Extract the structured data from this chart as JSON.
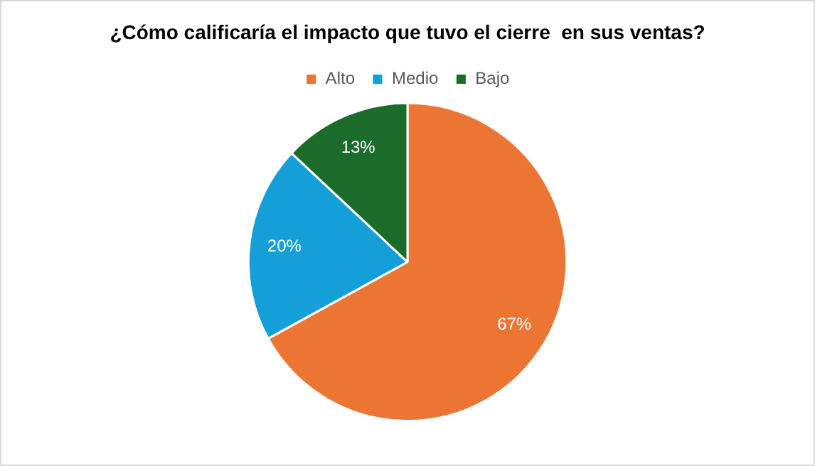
{
  "chart_data": {
    "type": "pie",
    "title": "¿Cómo calificaría el impacto que tuvo el cierre  en sus ventas?",
    "categories": [
      "Alto",
      "Medio",
      "Bajo"
    ],
    "values": [
      67,
      20,
      13
    ],
    "colors": [
      "#ed7534",
      "#149fd8",
      "#1b6b2b"
    ],
    "value_labels": [
      "67%",
      "20%",
      "13%"
    ],
    "legend": "top"
  }
}
